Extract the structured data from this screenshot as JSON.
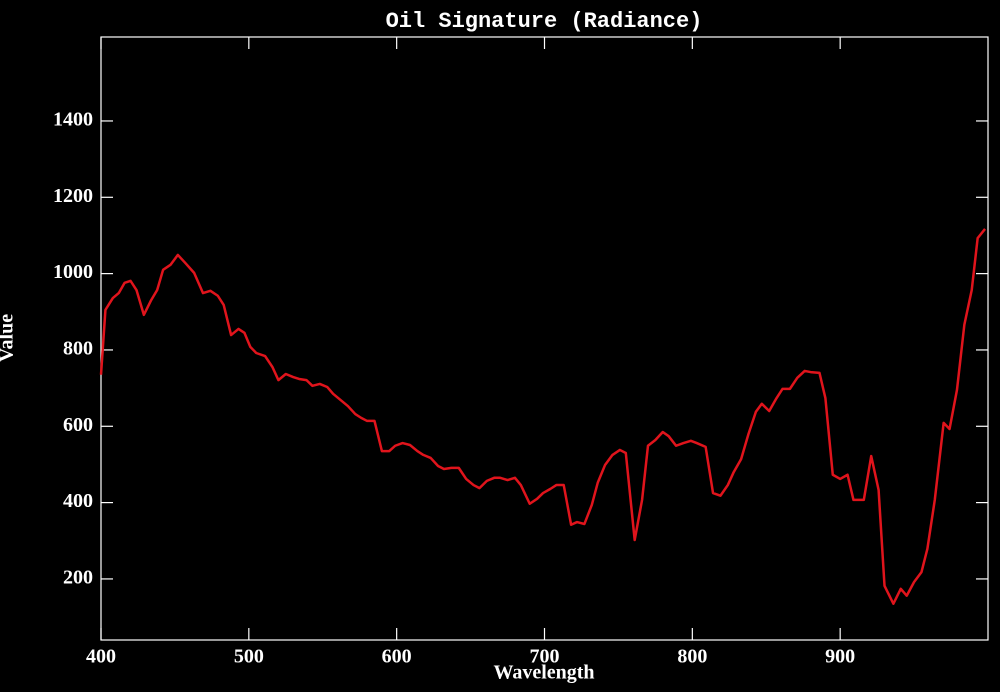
{
  "chart_data": {
    "type": "line",
    "title": "Oil Signature (Radiance)",
    "x_label": "Wavelength",
    "y_label": "Value",
    "xlim": [
      400,
      1000
    ],
    "xticks": [
      400,
      500,
      600,
      700,
      800,
      900
    ],
    "ylim": [
      40,
      1620
    ],
    "yticks": [
      200,
      400,
      600,
      800,
      1000,
      1200,
      1400
    ],
    "series": [
      {
        "color": "#e0141c",
        "x": [
          400,
          403,
          408,
          412,
          416,
          420,
          424,
          429,
          434,
          438,
          442,
          447,
          452,
          457,
          463,
          469,
          474,
          479,
          483,
          488,
          493,
          497,
          501,
          505,
          511,
          516,
          520,
          525,
          530,
          534,
          539,
          543,
          548,
          553,
          557,
          562,
          567,
          572,
          576,
          580,
          585,
          590,
          595,
          599,
          604,
          609,
          614,
          618,
          623,
          628,
          632,
          637,
          642,
          647,
          652,
          656,
          661,
          666,
          670,
          675,
          680,
          684,
          690,
          695,
          699,
          704,
          708,
          713,
          718,
          722,
          727,
          732,
          736,
          741,
          746,
          751,
          755,
          761,
          766,
          770,
          775,
          780,
          784,
          789,
          794,
          799,
          803,
          809,
          814,
          819,
          824,
          828,
          833,
          838,
          843,
          847,
          852,
          857,
          861,
          866,
          871,
          876,
          880,
          886,
          890,
          895,
          900,
          905,
          909,
          916,
          921,
          926,
          930,
          936,
          941,
          945,
          950,
          955,
          959,
          964,
          970,
          974,
          979,
          984,
          989,
          993,
          998
        ],
        "values": [
          735,
          905,
          936,
          949,
          976,
          981,
          957,
          892,
          931,
          957,
          1010,
          1023,
          1049,
          1028,
          1002,
          949,
          955,
          942,
          918,
          839,
          855,
          845,
          808,
          792,
          784,
          755,
          721,
          737,
          729,
          724,
          721,
          706,
          711,
          703,
          685,
          669,
          653,
          632,
          622,
          614,
          614,
          535,
          535,
          549,
          556,
          551,
          535,
          525,
          517,
          496,
          488,
          491,
          491,
          462,
          446,
          438,
          457,
          465,
          465,
          459,
          465,
          446,
          397,
          410,
          425,
          436,
          446,
          446,
          342,
          349,
          344,
          394,
          452,
          499,
          525,
          538,
          530,
          302,
          407,
          549,
          564,
          585,
          574,
          549,
          556,
          562,
          556,
          546,
          425,
          418,
          446,
          480,
          514,
          580,
          638,
          659,
          640,
          674,
          698,
          698,
          727,
          745,
          742,
          740,
          674,
          473,
          462,
          473,
          407,
          407,
          522,
          433,
          182,
          135,
          174,
          156,
          192,
          218,
          279,
          407,
          609,
          593,
          695,
          866,
          957,
          1093,
          1117
        ]
      }
    ]
  }
}
